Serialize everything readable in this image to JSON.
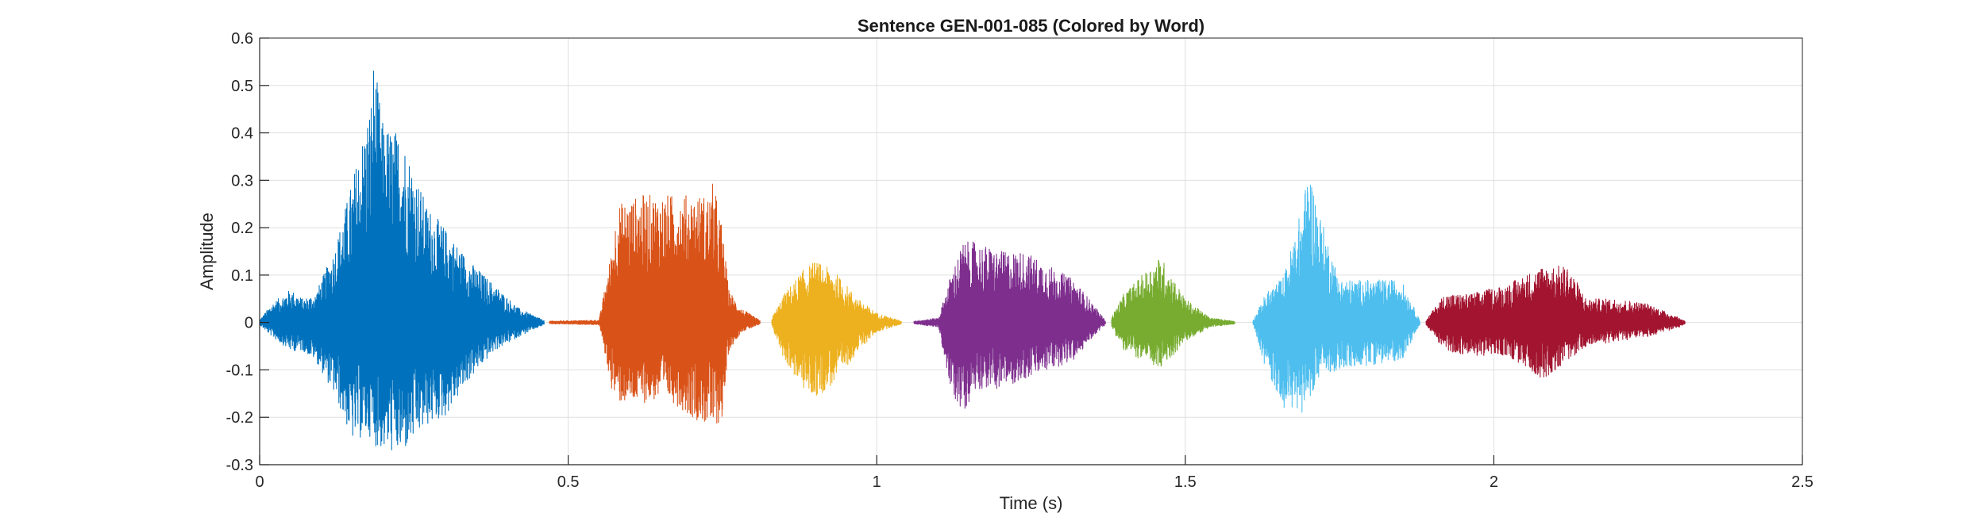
{
  "chart_data": {
    "type": "line",
    "title": "Sentence GEN-001-085 (Colored by Word)",
    "xlabel": "Time (s)",
    "ylabel": "Amplitude",
    "xlim": [
      0,
      2.5
    ],
    "ylim": [
      -0.3,
      0.6
    ],
    "xticks": [
      0,
      0.5,
      1,
      1.5,
      2,
      2.5
    ],
    "xtick_labels": [
      "0",
      "0.5",
      "1",
      "1.5",
      "2",
      "2.5"
    ],
    "yticks": [
      -0.3,
      -0.2,
      -0.1,
      0,
      0.1,
      0.2,
      0.3,
      0.4,
      0.5,
      0.6
    ],
    "ytick_labels": [
      "-0.3",
      "-0.2",
      "-0.1",
      "0",
      "0.1",
      "0.2",
      "0.3",
      "0.4",
      "0.5",
      "0.6"
    ],
    "grid": true,
    "series": [
      {
        "color": "#0072BD",
        "start": 0.0,
        "end": 0.46,
        "envelope_t": [
          0.0,
          0.02,
          0.05,
          0.07,
          0.09,
          0.12,
          0.15,
          0.18,
          0.185,
          0.2,
          0.23,
          0.27,
          0.3,
          0.34,
          0.38,
          0.42,
          0.46
        ],
        "envelope_pos": [
          0.005,
          0.04,
          0.07,
          0.05,
          0.06,
          0.15,
          0.3,
          0.47,
          0.56,
          0.42,
          0.4,
          0.25,
          0.2,
          0.13,
          0.08,
          0.03,
          0.005
        ],
        "envelope_neg": [
          -0.005,
          -0.03,
          -0.06,
          -0.06,
          -0.08,
          -0.15,
          -0.25,
          -0.24,
          -0.26,
          -0.27,
          -0.28,
          -0.22,
          -0.2,
          -0.12,
          -0.06,
          -0.03,
          -0.005
        ]
      },
      {
        "color": "#D95319",
        "start": 0.47,
        "end": 0.81,
        "envelope_t": [
          0.47,
          0.55,
          0.57,
          0.58,
          0.62,
          0.66,
          0.7,
          0.73,
          0.735,
          0.75,
          0.76,
          0.78,
          0.81
        ],
        "envelope_pos": [
          0.003,
          0.005,
          0.15,
          0.25,
          0.27,
          0.27,
          0.27,
          0.27,
          0.3,
          0.2,
          0.07,
          0.03,
          0.005
        ],
        "envelope_neg": [
          -0.003,
          -0.005,
          -0.14,
          -0.17,
          -0.17,
          -0.16,
          -0.2,
          -0.22,
          -0.23,
          -0.2,
          -0.06,
          -0.02,
          -0.005
        ]
      },
      {
        "color": "#EDB120",
        "start": 0.83,
        "end": 1.04,
        "envelope_t": [
          0.83,
          0.85,
          0.88,
          0.9,
          0.93,
          0.97,
          1.0,
          1.04
        ],
        "envelope_pos": [
          0.01,
          0.06,
          0.11,
          0.13,
          0.11,
          0.05,
          0.02,
          0.003
        ],
        "envelope_neg": [
          -0.01,
          -0.08,
          -0.14,
          -0.16,
          -0.13,
          -0.06,
          -0.02,
          -0.003
        ]
      },
      {
        "color": "#7E2F8E",
        "start": 1.06,
        "end": 1.37,
        "envelope_t": [
          1.06,
          1.1,
          1.12,
          1.14,
          1.16,
          1.2,
          1.24,
          1.28,
          1.32,
          1.35,
          1.37
        ],
        "envelope_pos": [
          0.003,
          0.01,
          0.1,
          0.17,
          0.17,
          0.15,
          0.15,
          0.12,
          0.09,
          0.04,
          0.005
        ],
        "envelope_neg": [
          -0.003,
          -0.01,
          -0.15,
          -0.19,
          -0.14,
          -0.14,
          -0.12,
          -0.1,
          -0.08,
          -0.03,
          -0.005
        ]
      },
      {
        "color": "#77AC30",
        "start": 1.38,
        "end": 1.58,
        "envelope_t": [
          1.38,
          1.4,
          1.43,
          1.46,
          1.5,
          1.54,
          1.58
        ],
        "envelope_pos": [
          0.01,
          0.06,
          0.1,
          0.14,
          0.05,
          0.01,
          0.003
        ],
        "envelope_neg": [
          -0.01,
          -0.06,
          -0.08,
          -0.1,
          -0.04,
          -0.01,
          -0.003
        ]
      },
      {
        "color": "#4DBEEE",
        "start": 1.61,
        "end": 1.88,
        "envelope_t": [
          1.61,
          1.63,
          1.66,
          1.69,
          1.7,
          1.72,
          1.75,
          1.8,
          1.85,
          1.88
        ],
        "envelope_pos": [
          0.005,
          0.06,
          0.1,
          0.25,
          0.33,
          0.22,
          0.09,
          0.09,
          0.09,
          0.005
        ],
        "envelope_neg": [
          -0.005,
          -0.1,
          -0.18,
          -0.19,
          -0.16,
          -0.11,
          -0.1,
          -0.09,
          -0.08,
          -0.005
        ]
      },
      {
        "color": "#A2142F",
        "start": 1.89,
        "end": 2.31,
        "envelope_t": [
          1.89,
          1.92,
          1.96,
          2.02,
          2.08,
          2.12,
          2.15,
          2.2,
          2.25,
          2.3,
          2.31
        ],
        "envelope_pos": [
          0.005,
          0.06,
          0.06,
          0.08,
          0.12,
          0.12,
          0.05,
          0.05,
          0.04,
          0.01,
          0.003
        ],
        "envelope_neg": [
          -0.005,
          -0.06,
          -0.07,
          -0.07,
          -0.12,
          -0.08,
          -0.05,
          -0.04,
          -0.03,
          -0.01,
          -0.003
        ]
      }
    ]
  }
}
